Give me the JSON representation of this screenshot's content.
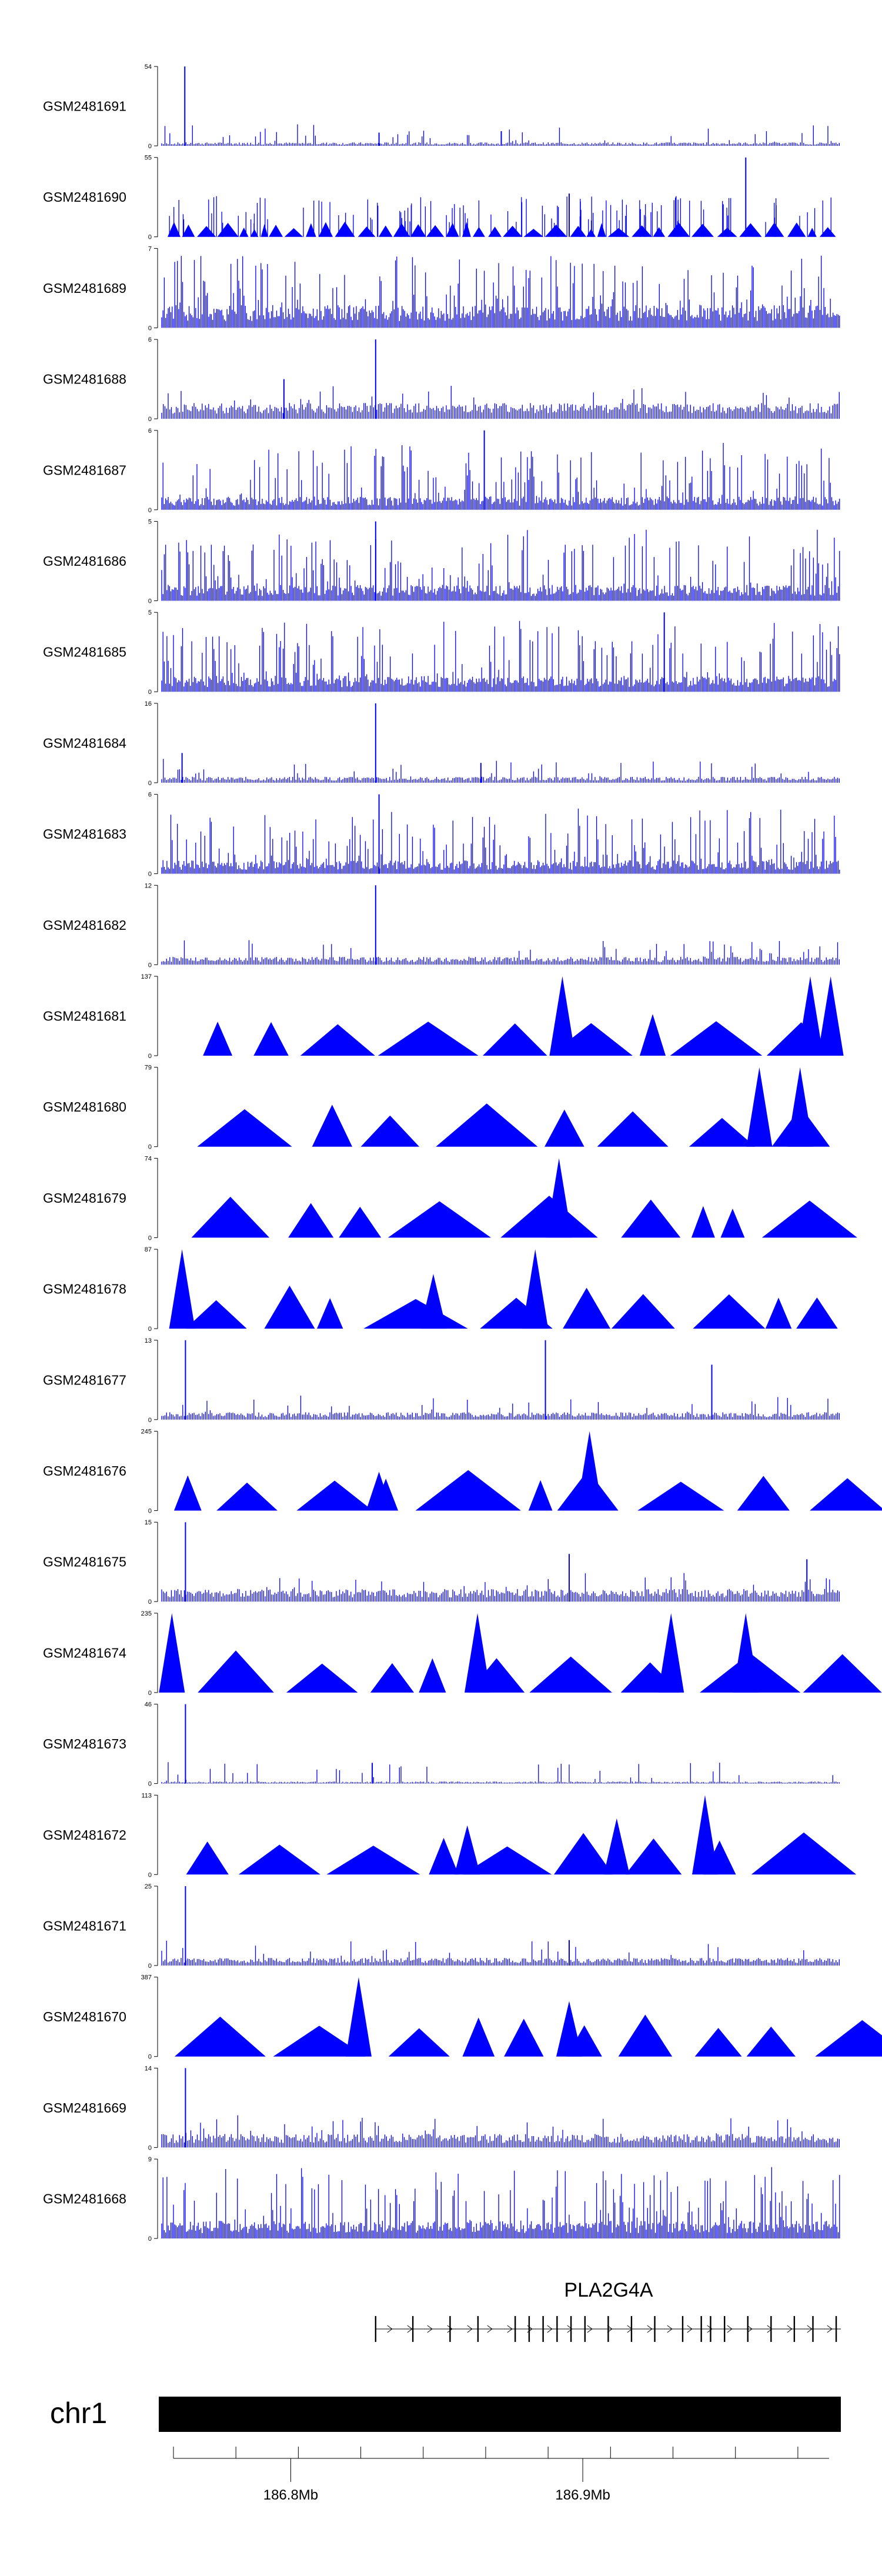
{
  "chart_data": {
    "type": "genome-track",
    "track_color": "#0000ff",
    "tracks": [
      {
        "name": "GSM2481691",
        "ymax": 54,
        "style": "noise",
        "base": 2,
        "peaks": [
          [
            0.034,
            54
          ],
          [
            0.32,
            9
          ],
          [
            0.5,
            10
          ]
        ]
      },
      {
        "name": "GSM2481690",
        "ymax": 55,
        "style": "block",
        "base": 9,
        "peaks": [
          [
            0.6,
            30
          ],
          [
            0.86,
            55
          ]
        ]
      },
      {
        "name": "GSM2481689",
        "ymax": 7,
        "style": "dense",
        "base": 2,
        "peaks": []
      },
      {
        "name": "GSM2481688",
        "ymax": 6,
        "style": "noise",
        "base": 1,
        "peaks": [
          [
            0.315,
            6
          ],
          [
            0.18,
            3
          ]
        ]
      },
      {
        "name": "GSM2481687",
        "ymax": 6,
        "style": "dense",
        "base": 1,
        "peaks": [
          [
            0.475,
            6
          ]
        ]
      },
      {
        "name": "GSM2481686",
        "ymax": 5,
        "style": "dense",
        "base": 1,
        "peaks": [
          [
            0.315,
            5
          ]
        ]
      },
      {
        "name": "GSM2481685",
        "ymax": 5,
        "style": "dense",
        "base": 1,
        "peaks": [
          [
            0.74,
            5
          ]
        ]
      },
      {
        "name": "GSM2481684",
        "ymax": 16,
        "style": "noise",
        "base": 1,
        "peaks": [
          [
            0.315,
            16
          ],
          [
            0.03,
            6
          ],
          [
            0.47,
            4
          ]
        ]
      },
      {
        "name": "GSM2481683",
        "ymax": 6,
        "style": "dense",
        "base": 1,
        "peaks": [
          [
            0.32,
            6
          ]
        ]
      },
      {
        "name": "GSM2481682",
        "ymax": 12,
        "style": "noise",
        "base": 1,
        "peaks": [
          [
            0.315,
            12
          ]
        ]
      },
      {
        "name": "GSM2481681",
        "ymax": 137,
        "style": "triangles",
        "base": 0,
        "peaks": [
          [
            0.59,
            137
          ],
          [
            0.955,
            137
          ],
          [
            0.985,
            137
          ]
        ]
      },
      {
        "name": "GSM2481680",
        "ymax": 79,
        "style": "triangles",
        "base": 0,
        "peaks": [
          [
            0.88,
            79
          ],
          [
            0.94,
            79
          ]
        ]
      },
      {
        "name": "GSM2481679",
        "ymax": 74,
        "style": "triangles",
        "base": 0,
        "peaks": [
          [
            0.585,
            74
          ]
        ]
      },
      {
        "name": "GSM2481678",
        "ymax": 87,
        "style": "triangles",
        "base": 0,
        "peaks": [
          [
            0.03,
            87
          ],
          [
            0.55,
            87
          ],
          [
            0.4,
            60
          ]
        ]
      },
      {
        "name": "GSM2481677",
        "ymax": 13,
        "style": "noise",
        "base": 1,
        "peaks": [
          [
            0.035,
            13
          ],
          [
            0.565,
            13
          ],
          [
            0.81,
            9
          ]
        ]
      },
      {
        "name": "GSM2481676",
        "ymax": 245,
        "style": "triangles",
        "base": 0,
        "peaks": [
          [
            0.63,
            245
          ],
          [
            0.32,
            120
          ]
        ]
      },
      {
        "name": "GSM2481675",
        "ymax": 15,
        "style": "noise",
        "base": 2,
        "peaks": [
          [
            0.035,
            15
          ],
          [
            0.6,
            9
          ],
          [
            0.95,
            8
          ]
        ]
      },
      {
        "name": "GSM2481674",
        "ymax": 235,
        "style": "triangles",
        "base": 0,
        "peaks": [
          [
            0.015,
            235
          ],
          [
            0.75,
            235
          ],
          [
            0.86,
            235
          ],
          [
            0.465,
            235
          ]
        ]
      },
      {
        "name": "GSM2481673",
        "ymax": 46,
        "style": "noise",
        "base": 1,
        "peaks": [
          [
            0.035,
            46
          ],
          [
            0.31,
            12
          ]
        ]
      },
      {
        "name": "GSM2481672",
        "ymax": 113,
        "style": "triangles",
        "base": 0,
        "peaks": [
          [
            0.8,
            113
          ],
          [
            0.67,
            80
          ],
          [
            0.45,
            70
          ]
        ]
      },
      {
        "name": "GSM2481671",
        "ymax": 25,
        "style": "noise",
        "base": 2,
        "peaks": [
          [
            0.035,
            25
          ],
          [
            0.6,
            8
          ]
        ]
      },
      {
        "name": "GSM2481670",
        "ymax": 387,
        "style": "triangles",
        "base": 0,
        "peaks": [
          [
            0.29,
            387
          ],
          [
            0.6,
            270
          ]
        ]
      },
      {
        "name": "GSM2481669",
        "ymax": 14,
        "style": "noise",
        "base": 2,
        "peaks": [
          [
            0.035,
            14
          ]
        ]
      },
      {
        "name": "GSM2481668",
        "ymax": 9,
        "style": "dense",
        "base": 2,
        "peaks": []
      }
    ],
    "gene": {
      "name": "PLA2G4A",
      "strand": "+",
      "start": 0.315,
      "end": 1.0
    },
    "chromosome": "chr1",
    "axis": {
      "ticks": [
        {
          "pos": 0.19,
          "label": "186.8Mb"
        },
        {
          "pos": 0.62,
          "label": "186.9Mb"
        }
      ]
    }
  }
}
